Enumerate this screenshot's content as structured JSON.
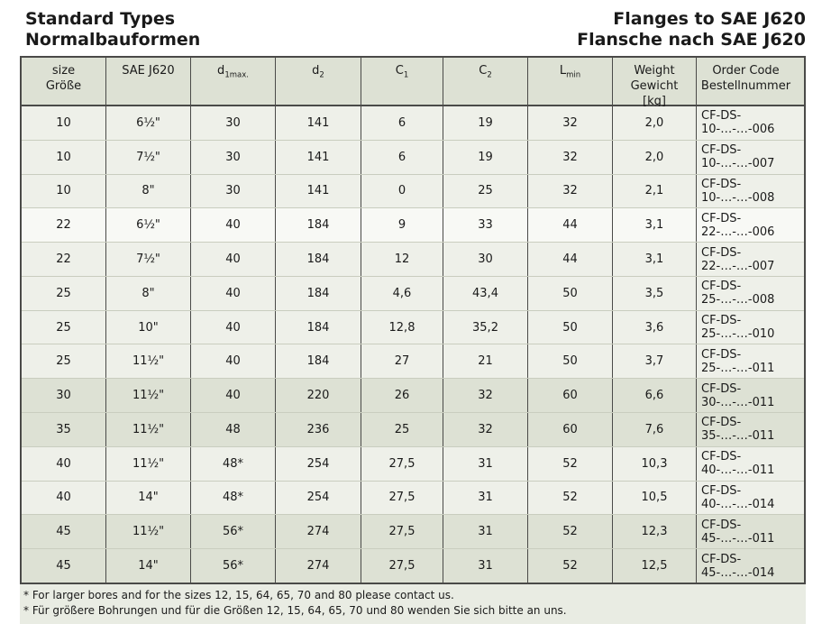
{
  "page": {
    "title_left_line1": "Standard Types",
    "title_left_line2": "Normalbauformen",
    "title_right_line1": "Flanges to SAE J620",
    "title_right_line2": "Flansche nach SAE J620"
  },
  "colors": {
    "header_bg": "#dde1d4",
    "row_light": "#eef0e9",
    "row_white": "#f8f9f5",
    "row_dark": "#dde1d4",
    "note_band_bg": "#e9ece3",
    "border_dark": "#4a4a48",
    "row_divider": "#c9cdbf"
  },
  "table": {
    "columns": [
      {
        "id": "size",
        "lines": [
          "size",
          "Größe"
        ]
      },
      {
        "id": "sae-j620",
        "lines": [
          "SAE J620"
        ]
      },
      {
        "id": "d1max",
        "base": "d",
        "sub": "1max."
      },
      {
        "id": "d2",
        "base": "d",
        "sub": "2"
      },
      {
        "id": "c1",
        "base": "C",
        "sub": "1"
      },
      {
        "id": "c2",
        "base": "C",
        "sub": "2"
      },
      {
        "id": "lmin",
        "base": "L",
        "sub": "min"
      },
      {
        "id": "weight",
        "lines": [
          "Weight",
          "Gewicht",
          "[kg]"
        ]
      },
      {
        "id": "order-code",
        "lines": [
          "Order Code",
          "Bestellnummer"
        ]
      }
    ],
    "rows": [
      {
        "shade": "light",
        "cells": [
          "10",
          "6½\"",
          "30",
          "141",
          "6",
          "19",
          "32",
          "2,0",
          "CF-DS-10-…-…-006"
        ]
      },
      {
        "shade": "light",
        "cells": [
          "10",
          "7½\"",
          "30",
          "141",
          "6",
          "19",
          "32",
          "2,0",
          "CF-DS-10-…-…-007"
        ]
      },
      {
        "shade": "light",
        "cells": [
          "10",
          "8\"",
          "30",
          "141",
          "0",
          "25",
          "32",
          "2,1",
          "CF-DS-10-…-…-008"
        ]
      },
      {
        "shade": "white",
        "cells": [
          "22",
          "6½\"",
          "40",
          "184",
          "9",
          "33",
          "44",
          "3,1",
          "CF-DS-22-…-…-006"
        ]
      },
      {
        "shade": "light",
        "cells": [
          "22",
          "7½\"",
          "40",
          "184",
          "12",
          "30",
          "44",
          "3,1",
          "CF-DS-22-…-…-007"
        ]
      },
      {
        "shade": "light",
        "cells": [
          "25",
          "8\"",
          "40",
          "184",
          "4,6",
          "43,4",
          "50",
          "3,5",
          "CF-DS-25-…-…-008"
        ]
      },
      {
        "shade": "light",
        "cells": [
          "25",
          "10\"",
          "40",
          "184",
          "12,8",
          "35,2",
          "50",
          "3,6",
          "CF-DS-25-…-…-010"
        ]
      },
      {
        "shade": "light",
        "cells": [
          "25",
          "11½\"",
          "40",
          "184",
          "27",
          "21",
          "50",
          "3,7",
          "CF-DS-25-…-…-011"
        ]
      },
      {
        "shade": "dark",
        "cells": [
          "30",
          "11½\"",
          "40",
          "220",
          "26",
          "32",
          "60",
          "6,6",
          "CF-DS-30-…-…-011"
        ]
      },
      {
        "shade": "dark",
        "cells": [
          "35",
          "11½\"",
          "48",
          "236",
          "25",
          "32",
          "60",
          "7,6",
          "CF-DS-35-…-…-011"
        ]
      },
      {
        "shade": "light",
        "cells": [
          "40",
          "11½\"",
          "48*",
          "254",
          "27,5",
          "31",
          "52",
          "10,3",
          "CF-DS-40-…-…-011"
        ]
      },
      {
        "shade": "light",
        "cells": [
          "40",
          "14\"",
          "48*",
          "254",
          "27,5",
          "31",
          "52",
          "10,5",
          "CF-DS-40-…-…-014"
        ]
      },
      {
        "shade": "dark",
        "cells": [
          "45",
          "11½\"",
          "56*",
          "274",
          "27,5",
          "31",
          "52",
          "12,3",
          "CF-DS-45-…-…-011"
        ]
      },
      {
        "shade": "dark",
        "cells": [
          "45",
          "14\"",
          "56*",
          "274",
          "27,5",
          "31",
          "52",
          "12,5",
          "CF-DS-45-…-…-014"
        ]
      }
    ]
  },
  "notes": [
    "* For larger bores and for the sizes 12, 15, 64, 65, 70 and 80 please contact us.",
    "* Für größere Bohrungen und für die Größen 12, 15, 64, 65, 70 und 80 wenden Sie sich bitte an uns."
  ]
}
